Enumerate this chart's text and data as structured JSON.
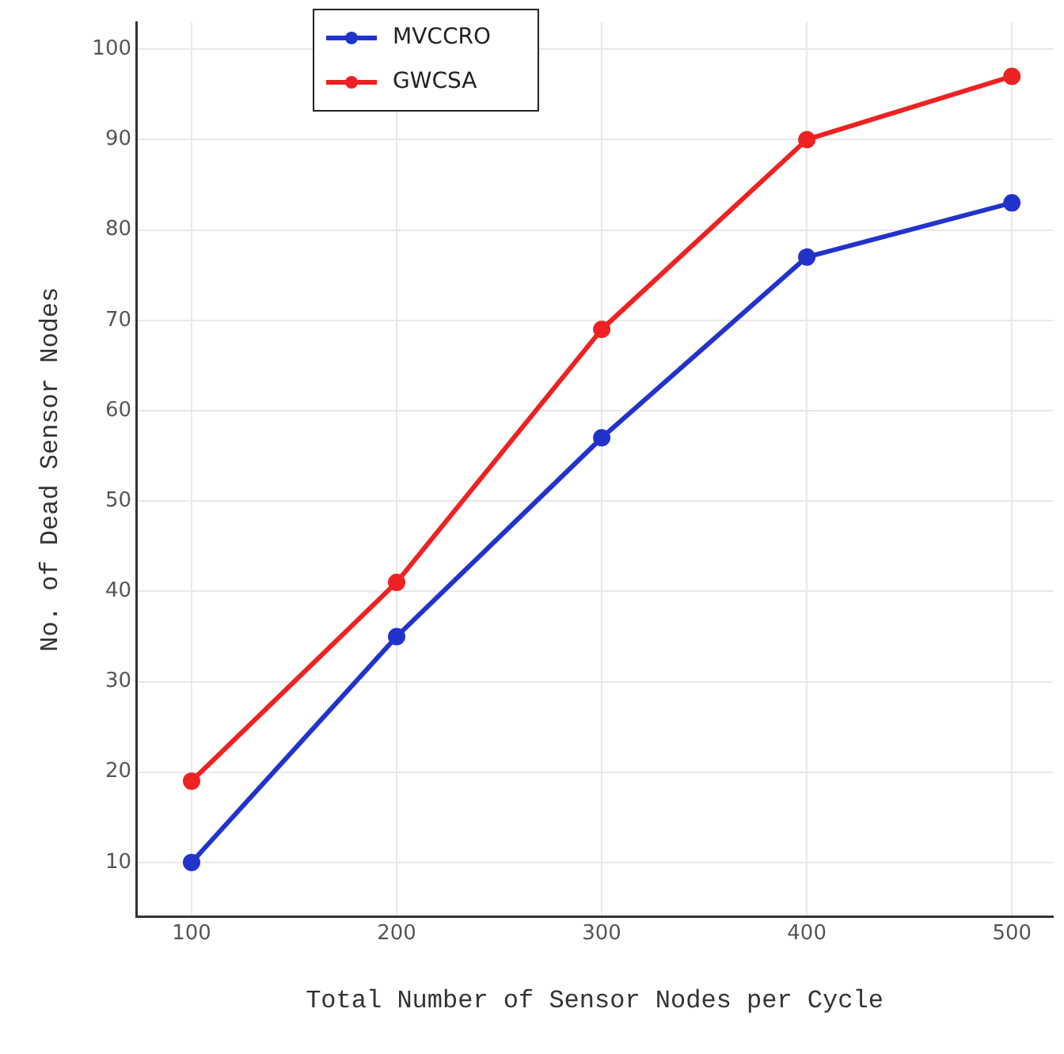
{
  "chart_data": {
    "type": "line",
    "xlabel": "Total Number of Sensor Nodes per Cycle",
    "ylabel": "No. of Dead Sensor Nodes",
    "x": [
      100,
      200,
      300,
      400,
      500
    ],
    "series": [
      {
        "name": "MVCCRO",
        "color": "#2233cc",
        "values": [
          10,
          35,
          57,
          77,
          83
        ]
      },
      {
        "name": "GWCSA",
        "color": "#ee2222",
        "values": [
          19,
          41,
          69,
          90,
          97
        ]
      }
    ],
    "xlim": [
      73,
      520
    ],
    "xticks": [
      100,
      200,
      300,
      400,
      500
    ],
    "ylim": [
      4,
      103
    ],
    "yticks": [
      10,
      20,
      30,
      40,
      50,
      60,
      70,
      80,
      90,
      100
    ],
    "grid": true,
    "legend": "top left",
    "marker": "circle",
    "line_style": "solid"
  }
}
